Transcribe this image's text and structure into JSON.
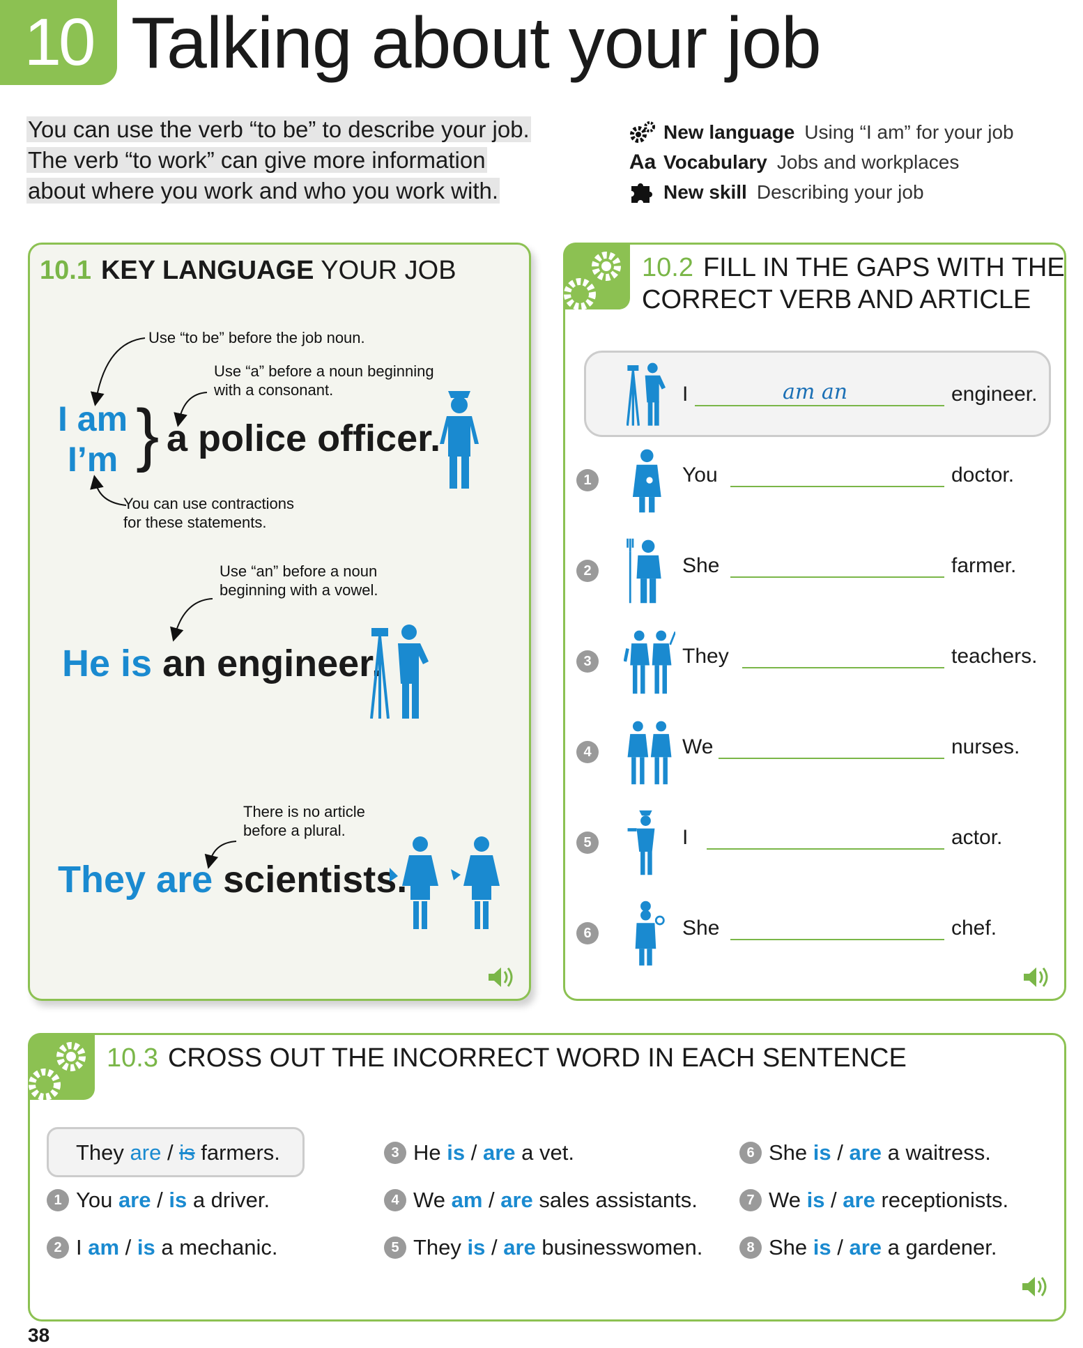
{
  "header": {
    "chapter_number": "10",
    "title": "Talking about your job",
    "intro_lines": [
      "You can use the verb “to be” to describe your job.",
      "The verb “to work” can give more information",
      "about where you work and who you work with."
    ],
    "meta": [
      {
        "icon": "gears-icon",
        "label": "New language",
        "value": "Using “I am” for your job"
      },
      {
        "icon": "aa-icon",
        "icon_text": "Aa",
        "label": "Vocabulary",
        "value": "Jobs and workplaces"
      },
      {
        "icon": "puzzle-icon",
        "label": "New skill",
        "value": "Describing your job"
      }
    ]
  },
  "panel1": {
    "number": "10.1",
    "title_bold": "KEY LANGUAGE",
    "title_rest": "YOUR JOB",
    "notes": {
      "to_be": "Use “to be” before the job noun.",
      "a_line1": "Use “a” before a noun beginning",
      "a_line2": "with a consonant.",
      "contr_line1": "You can use contractions",
      "contr_line2": "for these statements.",
      "an_line1": "Use “an” before a noun",
      "an_line2": "beginning with a vowel.",
      "plural_line1": "There is no article",
      "plural_line2": "before a plural."
    },
    "ex1": {
      "subj1": "I am",
      "subj2": "I’m",
      "rest": "a police officer."
    },
    "ex2": {
      "subj": "He is",
      "rest": "an engineer."
    },
    "ex3": {
      "subj": "They are",
      "rest": "scientists."
    }
  },
  "panel2": {
    "number": "10.2",
    "title_line1": "FILL IN THE GAPS WITH THE",
    "title_line2": "CORRECT VERB AND ARTICLE",
    "example": {
      "subject": "I",
      "answer": "am an",
      "noun": "engineer."
    },
    "items": [
      {
        "n": "1",
        "subject": "You",
        "noun": "doctor.",
        "icon": "doctor-icon"
      },
      {
        "n": "2",
        "subject": "She",
        "noun": "farmer.",
        "icon": "farmer-icon"
      },
      {
        "n": "3",
        "subject": "They",
        "noun": "teachers.",
        "icon": "teachers-icon"
      },
      {
        "n": "4",
        "subject": "We",
        "noun": "nurses.",
        "icon": "nurses-icon"
      },
      {
        "n": "5",
        "subject": "I",
        "noun": "actor.",
        "icon": "actor-icon"
      },
      {
        "n": "6",
        "subject": "She",
        "noun": "chef.",
        "icon": "chef-icon"
      }
    ]
  },
  "panel3": {
    "number": "10.3",
    "title": "CROSS OUT THE INCORRECT WORD IN EACH SENTENCE",
    "example": {
      "pre": "They",
      "w1": "are",
      "w2": "is",
      "post": "farmers."
    },
    "items": [
      {
        "n": "1",
        "pre": "You",
        "w1": "are",
        "w2": "is",
        "post": "a driver."
      },
      {
        "n": "2",
        "pre": "I",
        "w1": "am",
        "w2": "is",
        "post": "a mechanic."
      },
      {
        "n": "3",
        "pre": "He",
        "w1": "is",
        "w2": "are",
        "post": "a vet."
      },
      {
        "n": "4",
        "pre": "We",
        "w1": "am",
        "w2": "are",
        "post": "sales assistants."
      },
      {
        "n": "5",
        "pre": "They",
        "w1": "is",
        "w2": "are",
        "post": "businesswomen."
      },
      {
        "n": "6",
        "pre": "She",
        "w1": "is",
        "w2": "are",
        "post": "a waitress."
      },
      {
        "n": "7",
        "pre": "We",
        "w1": "is",
        "w2": "are",
        "post": "receptionists."
      },
      {
        "n": "8",
        "pre": "She",
        "w1": "is",
        "w2": "are",
        "post": "a gardener."
      }
    ]
  },
  "page_number": "38",
  "colors": {
    "green": "#8cc152",
    "blue": "#1a8ad0",
    "grey": "#9a9a9a"
  }
}
